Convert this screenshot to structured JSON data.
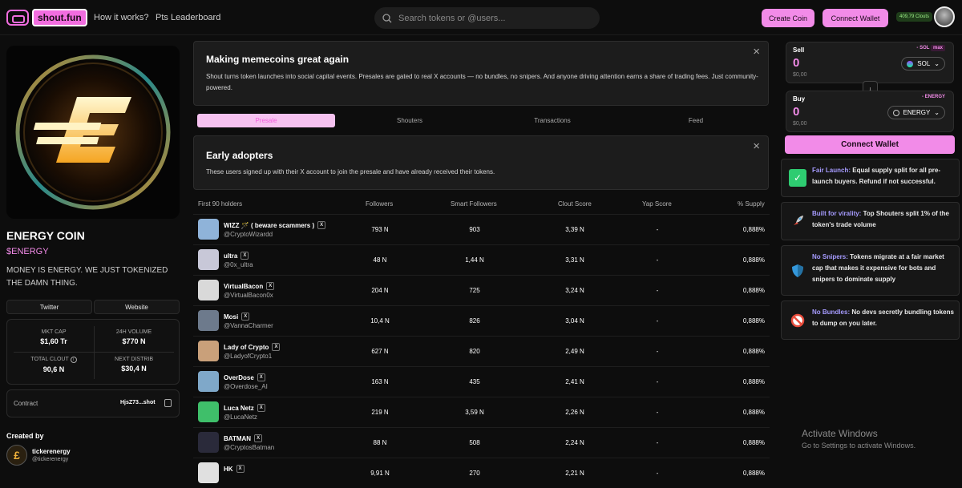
{
  "header": {
    "logo": "shout.fun",
    "nav": [
      "How it works?",
      "Pts Leaderboard"
    ],
    "search_placeholder": "Search tokens or @users...",
    "create_coin": "Create Coin",
    "connect_wallet": "Connect Wallet",
    "clouts": "409,79 Clouts"
  },
  "coin": {
    "name": "ENERGY COIN",
    "ticker": "$ENERGY",
    "description": "MONEY IS ENERGY. WE JUST TOKENIZED THE DAMN THING.",
    "twitter": "Twitter",
    "website": "Website",
    "stats": {
      "mkt_cap_label": "MKT CAP",
      "mkt_cap": "$1,60 Tr",
      "volume_label": "24H VOLUME",
      "volume": "$770 N",
      "clout_label": "TOTAL CLOUT",
      "clout": "90,6 N",
      "distrib_label": "NEXT DISTRIB",
      "distrib": "$30,4 N"
    },
    "contract_label": "Contract",
    "contract_value": "HjsZ73...shot",
    "created_by": "Created by",
    "creator_name": "tickerenergy",
    "creator_handle": "@tickerenergy"
  },
  "intro": {
    "title": "Making memecoins great again",
    "text": "Shout turns token launches into social capital events. Presales are gated to real X accounts — no bundles, no snipers. And anyone driving attention earns a share of trading fees. Just community-powered."
  },
  "tabs": [
    "Presale",
    "Shouters",
    "Transactions",
    "Feed"
  ],
  "early": {
    "title": "Early adopters",
    "text": "These users signed up with their X account to join the presale and have already received their tokens."
  },
  "holders": {
    "columns": [
      "First 90 holders",
      "Followers",
      "Smart Followers",
      "Clout Score",
      "Yap Score",
      "% Supply"
    ],
    "rows": [
      {
        "name": "WIZZ 🪄 ( beware scammers )",
        "handle": "@CryptoWizardd",
        "followers": "793 N",
        "smart": "903",
        "clout": "3,39 N",
        "yap": "-",
        "supply": "0,888%",
        "color": "#8fb3d9"
      },
      {
        "name": "ultra",
        "handle": "@0x_ultra",
        "followers": "48 N",
        "smart": "1,44 N",
        "clout": "3,31 N",
        "yap": "-",
        "supply": "0,888%",
        "color": "#c8c8d8"
      },
      {
        "name": "VirtualBacon",
        "handle": "@VirtualBacon0x",
        "followers": "204 N",
        "smart": "725",
        "clout": "3,24 N",
        "yap": "-",
        "supply": "0,888%",
        "color": "#d9d9d9"
      },
      {
        "name": "Mosi",
        "handle": "@VannaCharmer",
        "followers": "10,4 N",
        "smart": "826",
        "clout": "3,04 N",
        "yap": "-",
        "supply": "0,888%",
        "color": "#6d7a8c"
      },
      {
        "name": "Lady of Crypto",
        "handle": "@LadyofCrypto1",
        "followers": "627 N",
        "smart": "820",
        "clout": "2,49 N",
        "yap": "-",
        "supply": "0,888%",
        "color": "#c9a07a"
      },
      {
        "name": "OverDose",
        "handle": "@Overdose_AI",
        "followers": "163 N",
        "smart": "435",
        "clout": "2,41 N",
        "yap": "-",
        "supply": "0,888%",
        "color": "#7fa8c9"
      },
      {
        "name": "Luca Netz",
        "handle": "@LucaNetz",
        "followers": "219 N",
        "smart": "3,59 N",
        "clout": "2,26 N",
        "yap": "-",
        "supply": "0,888%",
        "color": "#3fbf6a"
      },
      {
        "name": "BATMAN",
        "handle": "@CryptosBatman",
        "followers": "88 N",
        "smart": "508",
        "clout": "2,24 N",
        "yap": "-",
        "supply": "0,888%",
        "color": "#2a2a3a"
      },
      {
        "name": "HK",
        "handle": "",
        "followers": "9,91 N",
        "smart": "270",
        "clout": "2,21 N",
        "yap": "-",
        "supply": "0,888%",
        "color": "#e0e0e0"
      }
    ]
  },
  "swap": {
    "sell_label": "Sell",
    "sell_amount": "0",
    "sell_usd": "$0,00",
    "sell_tag": "- SOL",
    "max": "max",
    "sell_token": "SOL",
    "buy_label": "Buy",
    "buy_amount": "0",
    "buy_usd": "$0,00",
    "buy_tag": "- ENERGY",
    "buy_token": "ENERGY",
    "connect": "Connect Wallet"
  },
  "features": [
    {
      "title": "Fair Launch:",
      "text": " Equal supply split for all pre-launch buyers. Refund if not successful.",
      "icon": "check-icon"
    },
    {
      "title": "Built for virality:",
      "text": " Top Shouters split 1% of the token's trade volume",
      "icon": "rocket-icon"
    },
    {
      "title": "No Snipers:",
      "text": " Tokens migrate at a fair market cap that makes it expensive for bots and snipers to dominate supply",
      "icon": "shield-icon"
    },
    {
      "title": "No Bundles:",
      "text": " No devs secretly bundling tokens to dump on you later.",
      "icon": "prohibited-icon"
    }
  ],
  "watermark": {
    "line1": "Activate Windows",
    "line2": "Go to Settings to activate Windows."
  },
  "colors": {
    "accent": "#f28be8",
    "highlight": "#a69bff"
  }
}
